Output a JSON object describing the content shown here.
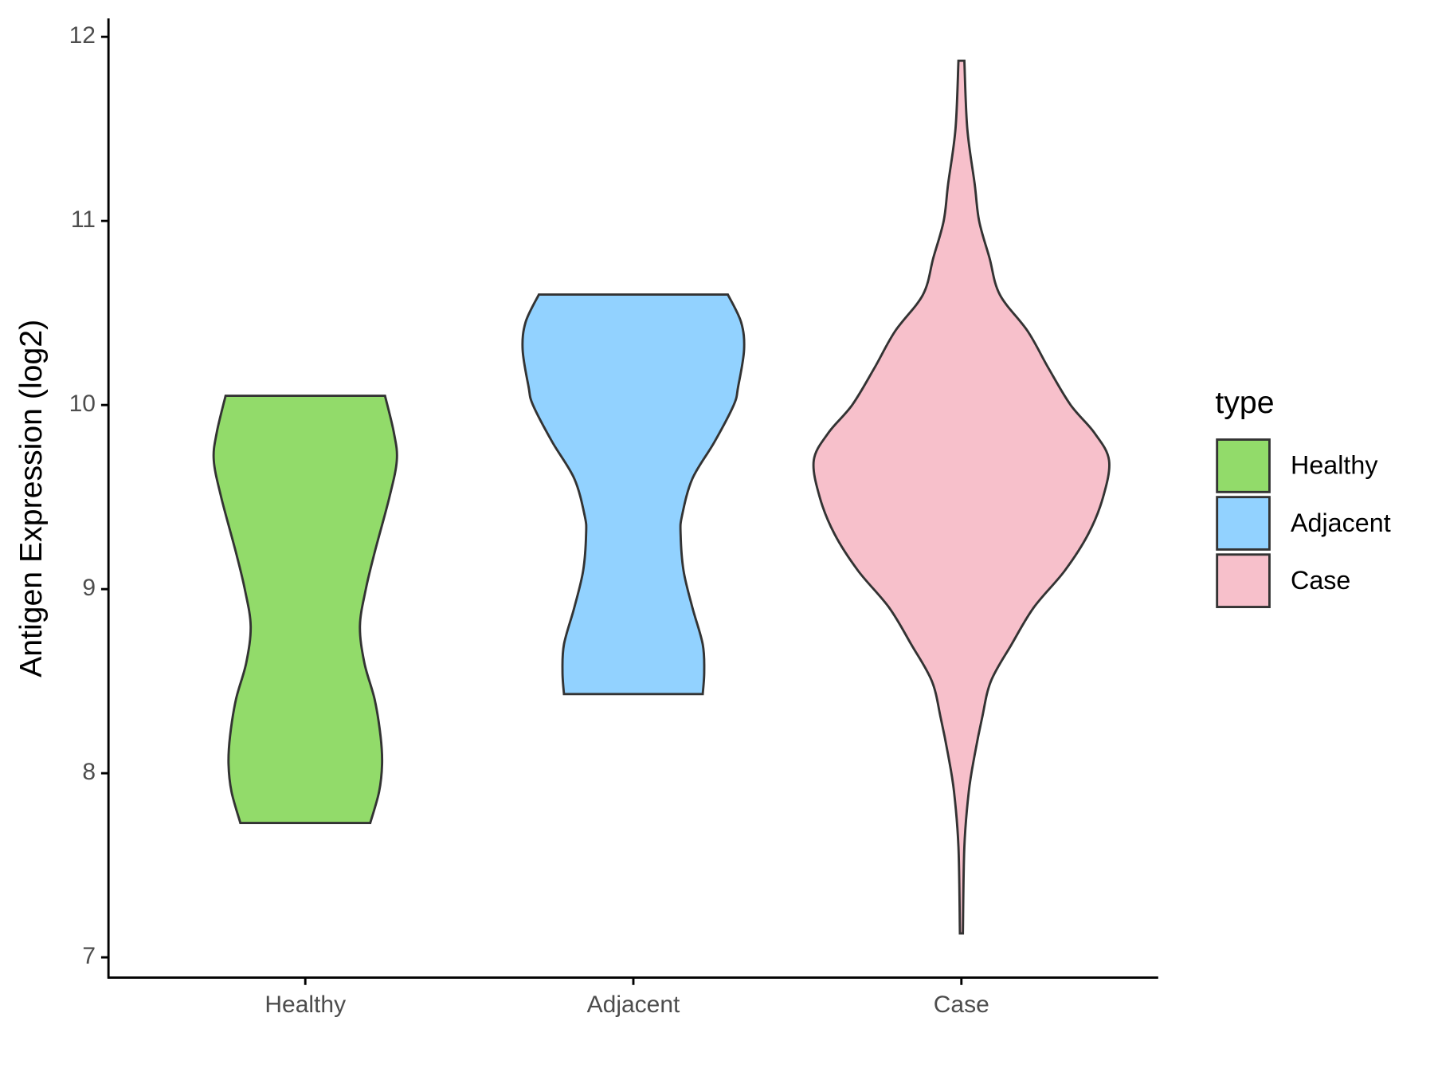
{
  "chart_data": {
    "type": "violin",
    "y_label": "Antigen Expression (log2)",
    "categories": [
      "Healthy",
      "Adjacent",
      "Case"
    ],
    "legend_title": "type",
    "legend": "right",
    "ylim": [
      6.89,
      12.1
    ],
    "yticks": [
      7,
      8,
      9,
      10,
      11,
      12
    ],
    "series": [
      {
        "name": "Healthy",
        "color": "#92db6a",
        "y": [
          10.05,
          9.85,
          9.7,
          9.5,
          9.2,
          9.0,
          8.8,
          8.6,
          8.4,
          8.2,
          8.05,
          7.9,
          7.73
        ],
        "density": [
          0.54,
          0.6,
          0.62,
          0.57,
          0.47,
          0.41,
          0.37,
          0.4,
          0.47,
          0.51,
          0.52,
          0.5,
          0.44
        ]
      },
      {
        "name": "Adjacent",
        "color": "#92d2ff",
        "y": [
          10.6,
          10.45,
          10.3,
          10.1,
          10.0,
          9.8,
          9.6,
          9.4,
          9.3,
          9.1,
          8.9,
          8.7,
          8.55,
          8.43
        ],
        "density": [
          0.64,
          0.73,
          0.75,
          0.71,
          0.68,
          0.55,
          0.4,
          0.33,
          0.32,
          0.34,
          0.4,
          0.47,
          0.48,
          0.47
        ]
      },
      {
        "name": "Case",
        "color": "#f7c0cb",
        "y": [
          11.87,
          11.5,
          11.2,
          11.0,
          10.8,
          10.6,
          10.4,
          10.2,
          10.0,
          9.85,
          9.7,
          9.5,
          9.3,
          9.1,
          8.9,
          8.7,
          8.5,
          8.3,
          8.1,
          7.9,
          7.6,
          7.13
        ],
        "density": [
          0.02,
          0.04,
          0.09,
          0.12,
          0.19,
          0.26,
          0.45,
          0.59,
          0.74,
          0.9,
          1.0,
          0.96,
          0.86,
          0.7,
          0.49,
          0.34,
          0.2,
          0.14,
          0.09,
          0.05,
          0.02,
          0.01
        ]
      }
    ]
  }
}
